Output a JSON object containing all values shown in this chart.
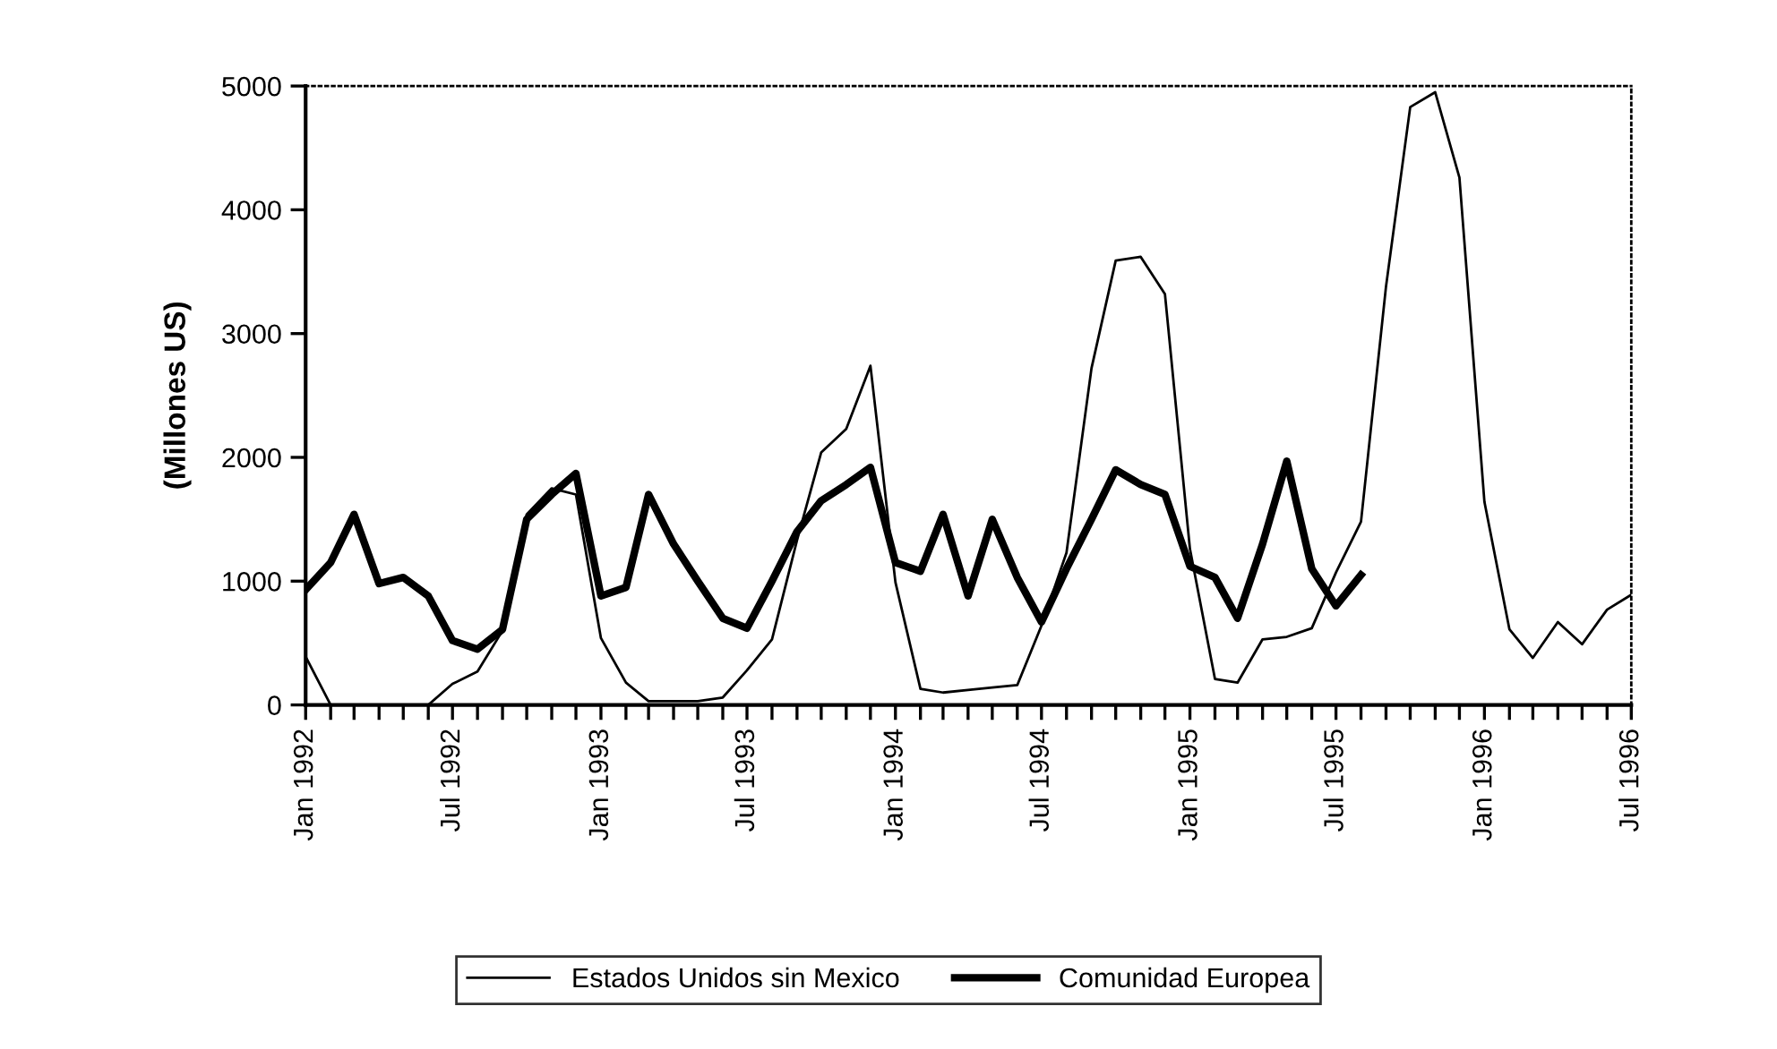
{
  "chart_data": {
    "type": "line",
    "ylabel": "(Millones US)",
    "x": [
      "1992-01",
      "1992-02",
      "1992-03",
      "1992-04",
      "1992-05",
      "1992-06",
      "1992-07",
      "1992-08",
      "1992-09",
      "1992-10",
      "1992-11",
      "1992-12",
      "1993-01",
      "1993-02",
      "1993-03",
      "1993-04",
      "1993-05",
      "1993-06",
      "1993-07",
      "1993-08",
      "1993-09",
      "1993-10",
      "1993-11",
      "1993-12",
      "1994-01",
      "1994-02",
      "1994-03",
      "1994-04",
      "1994-05",
      "1994-06",
      "1994-07",
      "1994-08",
      "1994-09",
      "1994-10",
      "1994-11",
      "1994-12",
      "1995-01",
      "1995-02",
      "1995-03",
      "1995-04",
      "1995-05",
      "1995-06",
      "1995-07",
      "1995-08",
      "1995-09",
      "1995-10",
      "1995-11",
      "1995-12",
      "1996-01",
      "1996-02",
      "1996-03",
      "1996-04",
      "1996-05",
      "1996-06",
      "1996-07"
    ],
    "series": [
      {
        "name": "Estados Unidos sin Mexico",
        "color": "#000000",
        "values": [
          390,
          0,
          0,
          0,
          0,
          0,
          170,
          270,
          600,
          1540,
          1750,
          1700,
          540,
          180,
          30,
          30,
          30,
          60,
          280,
          530,
          1330,
          2040,
          2230,
          2740,
          990,
          130,
          100,
          120,
          140,
          160,
          640,
          1230,
          2720,
          3590,
          3620,
          3320,
          1260,
          210,
          180,
          530,
          550,
          620,
          1070,
          1480,
          3380,
          4830,
          4950,
          4260,
          1640,
          610,
          380,
          670,
          490,
          770,
          890
        ]
      },
      {
        "name": "Comunidad Europea",
        "color": "#000000",
        "values": [
          930,
          1150,
          1540,
          980,
          1030,
          880,
          520,
          450,
          610,
          1500,
          1700,
          1870,
          880,
          950,
          1700,
          1300,
          1000,
          700,
          620,
          1000,
          1400,
          1650,
          1780,
          1920,
          1150,
          1080,
          1540,
          880,
          1500,
          1030,
          670,
          1100,
          1500,
          1900,
          1780,
          1700,
          1120,
          1030,
          700,
          1300,
          1970,
          1100,
          800,
          1050,
          null,
          null,
          null,
          null,
          null,
          null,
          null,
          null,
          null,
          null,
          null
        ]
      }
    ],
    "xlim": [
      "1992-01",
      "1996-07"
    ],
    "xticks": [
      {
        "value": "1992-01",
        "label": "Jan 1992"
      },
      {
        "value": "1992-02",
        "label": null
      },
      {
        "value": "1992-03",
        "label": null
      },
      {
        "value": "1992-04",
        "label": null
      },
      {
        "value": "1992-05",
        "label": null
      },
      {
        "value": "1992-06",
        "label": null
      },
      {
        "value": "1992-07",
        "label": "Jul 1992"
      },
      {
        "value": "1992-08",
        "label": null
      },
      {
        "value": "1992-09",
        "label": null
      },
      {
        "value": "1992-10",
        "label": null
      },
      {
        "value": "1992-11",
        "label": null
      },
      {
        "value": "1992-12",
        "label": null
      },
      {
        "value": "1993-01",
        "label": "Jan 1993"
      },
      {
        "value": "1993-02",
        "label": null
      },
      {
        "value": "1993-03",
        "label": null
      },
      {
        "value": "1993-04",
        "label": null
      },
      {
        "value": "1993-05",
        "label": null
      },
      {
        "value": "1993-06",
        "label": null
      },
      {
        "value": "1993-07",
        "label": "Jul 1993"
      },
      {
        "value": "1993-08",
        "label": null
      },
      {
        "value": "1993-09",
        "label": null
      },
      {
        "value": "1993-10",
        "label": null
      },
      {
        "value": "1993-11",
        "label": null
      },
      {
        "value": "1993-12",
        "label": null
      },
      {
        "value": "1994-01",
        "label": "Jan 1994"
      },
      {
        "value": "1994-02",
        "label": null
      },
      {
        "value": "1994-03",
        "label": null
      },
      {
        "value": "1994-04",
        "label": null
      },
      {
        "value": "1994-05",
        "label": null
      },
      {
        "value": "1994-06",
        "label": null
      },
      {
        "value": "1994-07",
        "label": "Jul 1994"
      },
      {
        "value": "1994-08",
        "label": null
      },
      {
        "value": "1994-09",
        "label": null
      },
      {
        "value": "1994-10",
        "label": null
      },
      {
        "value": "1994-11",
        "label": null
      },
      {
        "value": "1994-12",
        "label": null
      },
      {
        "value": "1995-01",
        "label": "Jan 1995"
      },
      {
        "value": "1995-02",
        "label": null
      },
      {
        "value": "1995-03",
        "label": null
      },
      {
        "value": "1995-04",
        "label": null
      },
      {
        "value": "1995-05",
        "label": null
      },
      {
        "value": "1995-06",
        "label": null
      },
      {
        "value": "1995-07",
        "label": "Jul 1995"
      },
      {
        "value": "1995-08",
        "label": null
      },
      {
        "value": "1995-09",
        "label": null
      },
      {
        "value": "1995-10",
        "label": null
      },
      {
        "value": "1995-11",
        "label": null
      },
      {
        "value": "1995-12",
        "label": null
      },
      {
        "value": "1996-01",
        "label": "Jan 1996"
      },
      {
        "value": "1996-02",
        "label": null
      },
      {
        "value": "1996-03",
        "label": null
      },
      {
        "value": "1996-04",
        "label": null
      },
      {
        "value": "1996-05",
        "label": null
      },
      {
        "value": "1996-06",
        "label": null
      },
      {
        "value": "1996-07",
        "label": "Jul 1996"
      }
    ],
    "ylim": [
      0,
      5000
    ],
    "yticks": [
      0,
      1000,
      2000,
      3000,
      4000,
      5000
    ],
    "grid": false,
    "legend": "bottom",
    "line_style": "solid"
  }
}
